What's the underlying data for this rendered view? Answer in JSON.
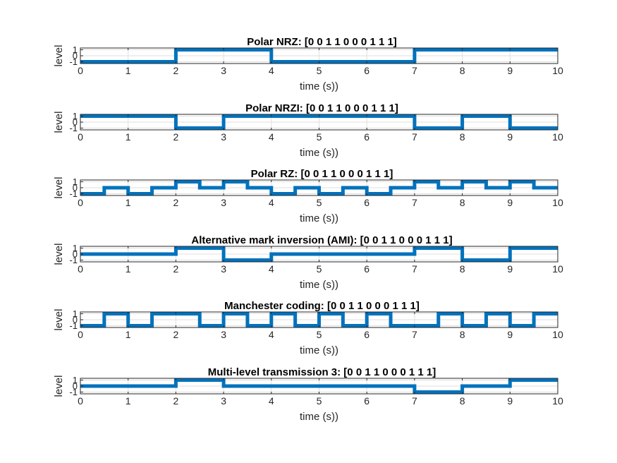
{
  "chart_data": [
    {
      "type": "line",
      "title": "Polar NRZ: [0  0  1  1  0  0  0  1  1  1]",
      "xlabel": "time (s))",
      "ylabel": "level",
      "xlim": [
        0,
        10
      ],
      "ylim": [
        -1.3,
        1.3
      ],
      "xticks": [
        "0",
        "1",
        "2",
        "3",
        "4",
        "5",
        "6",
        "7",
        "8",
        "9",
        "10"
      ],
      "yticks": [
        "-1",
        "0",
        "1"
      ],
      "grid": true,
      "bits": [
        0,
        0,
        1,
        1,
        0,
        0,
        0,
        1,
        1,
        1
      ],
      "series": [
        {
          "x": [
            0,
            2,
            2,
            4,
            4,
            7,
            7,
            10
          ],
          "y": [
            -1,
            -1,
            1,
            1,
            -1,
            -1,
            1,
            1
          ]
        }
      ]
    },
    {
      "type": "line",
      "title": "Polar NRZI: [0  0  1  1  0  0  0  1  1  1]",
      "xlabel": "time (s))",
      "ylabel": "level",
      "xlim": [
        0,
        10
      ],
      "ylim": [
        -1.3,
        1.3
      ],
      "xticks": [
        "0",
        "1",
        "2",
        "3",
        "4",
        "5",
        "6",
        "7",
        "8",
        "9",
        "10"
      ],
      "yticks": [
        "-1",
        "0",
        "1"
      ],
      "grid": true,
      "bits": [
        0,
        0,
        1,
        1,
        0,
        0,
        0,
        1,
        1,
        1
      ],
      "series": [
        {
          "x": [
            0,
            2,
            2,
            3,
            3,
            7,
            7,
            8,
            8,
            9,
            9,
            10
          ],
          "y": [
            1,
            1,
            -1,
            -1,
            1,
            1,
            -1,
            -1,
            1,
            1,
            -1,
            -1
          ]
        }
      ]
    },
    {
      "type": "line",
      "title": "Polar RZ: [0  0  1  1  0  0  0  1  1  1]",
      "xlabel": "time (s))",
      "ylabel": "level",
      "xlim": [
        0,
        10
      ],
      "ylim": [
        -1.3,
        1.3
      ],
      "xticks": [
        "0",
        "1",
        "2",
        "3",
        "4",
        "5",
        "6",
        "7",
        "8",
        "9",
        "10"
      ],
      "yticks": [
        "-1",
        "0",
        "1"
      ],
      "grid": true,
      "bits": [
        0,
        0,
        1,
        1,
        0,
        0,
        0,
        1,
        1,
        1
      ],
      "series": [
        {
          "x": [
            0,
            0.5,
            0.5,
            1,
            1,
            1.5,
            1.5,
            2,
            2,
            2.5,
            2.5,
            3,
            3,
            3.5,
            3.5,
            4,
            4,
            4.5,
            4.5,
            5,
            5,
            5.5,
            5.5,
            6,
            6,
            6.5,
            6.5,
            7,
            7,
            7.5,
            7.5,
            8,
            8,
            8.5,
            8.5,
            9,
            9,
            9.5,
            9.5,
            10
          ],
          "y": [
            -1,
            -1,
            0,
            0,
            -1,
            -1,
            0,
            0,
            1,
            1,
            0,
            0,
            1,
            1,
            0,
            0,
            -1,
            -1,
            0,
            0,
            -1,
            -1,
            0,
            0,
            -1,
            -1,
            0,
            0,
            1,
            1,
            0,
            0,
            1,
            1,
            0,
            0,
            1,
            1,
            0,
            0
          ]
        }
      ]
    },
    {
      "type": "line",
      "title": "Alternative mark inversion (AMI): [0  0  1  1  0  0  0  1  1  1]",
      "xlabel": "time (s))",
      "ylabel": "level",
      "xlim": [
        0,
        10
      ],
      "ylim": [
        -1.3,
        1.3
      ],
      "xticks": [
        "0",
        "1",
        "2",
        "3",
        "4",
        "5",
        "6",
        "7",
        "8",
        "9",
        "10"
      ],
      "yticks": [
        "-1",
        "0",
        "1"
      ],
      "grid": true,
      "bits": [
        0,
        0,
        1,
        1,
        0,
        0,
        0,
        1,
        1,
        1
      ],
      "series": [
        {
          "x": [
            0,
            2,
            2,
            3,
            3,
            4,
            4,
            7,
            7,
            8,
            8,
            9,
            9,
            10
          ],
          "y": [
            0,
            0,
            1,
            1,
            -1,
            -1,
            0,
            0,
            1,
            1,
            -1,
            -1,
            1,
            1
          ]
        }
      ]
    },
    {
      "type": "line",
      "title": "Manchester coding: [0  0  1  1  0  0  0  1  1  1]",
      "xlabel": "time (s))",
      "ylabel": "level",
      "xlim": [
        0,
        10
      ],
      "ylim": [
        -1.3,
        1.3
      ],
      "xticks": [
        "0",
        "1",
        "2",
        "3",
        "4",
        "5",
        "6",
        "7",
        "8",
        "9",
        "10"
      ],
      "yticks": [
        "-1",
        "0",
        "1"
      ],
      "grid": true,
      "bits": [
        0,
        0,
        1,
        1,
        0,
        0,
        0,
        1,
        1,
        1
      ],
      "series": [
        {
          "x": [
            0,
            0.5,
            0.5,
            1,
            1,
            1.5,
            1.5,
            2.5,
            2.5,
            3,
            3,
            3.5,
            3.5,
            4,
            4,
            4.5,
            4.5,
            5,
            5,
            5.5,
            5.5,
            6,
            6,
            6.5,
            6.5,
            7.5,
            7.5,
            8,
            8,
            8.5,
            8.5,
            9,
            9,
            9.5,
            9.5,
            10
          ],
          "y": [
            -1,
            -1,
            1,
            1,
            -1,
            -1,
            1,
            1,
            -1,
            -1,
            1,
            1,
            -1,
            -1,
            1,
            1,
            -1,
            -1,
            1,
            1,
            -1,
            -1,
            1,
            1,
            -1,
            -1,
            1,
            1,
            -1,
            -1,
            1,
            1,
            -1,
            -1,
            1,
            1
          ]
        }
      ]
    },
    {
      "type": "line",
      "title": "Multi-level transmission 3: [0  0  1  1  0  0  0  1  1  1]",
      "xlabel": "time (s))",
      "ylabel": "level",
      "xlim": [
        0,
        10
      ],
      "ylim": [
        -1.3,
        1.3
      ],
      "xticks": [
        "0",
        "1",
        "2",
        "3",
        "4",
        "5",
        "6",
        "7",
        "8",
        "9",
        "10"
      ],
      "yticks": [
        "-1",
        "0",
        "1"
      ],
      "grid": true,
      "bits": [
        0,
        0,
        1,
        1,
        0,
        0,
        0,
        1,
        1,
        1
      ],
      "series": [
        {
          "x": [
            0,
            2,
            2,
            3,
            3,
            7,
            7,
            8,
            8,
            9,
            9,
            10
          ],
          "y": [
            0,
            0,
            1,
            1,
            0,
            0,
            -1,
            -1,
            0,
            0,
            1,
            1
          ]
        }
      ]
    }
  ],
  "colors": {
    "line": "#0072BD",
    "axis": "#262626",
    "grid": "#dfdfdf",
    "background": "#ffffff"
  }
}
